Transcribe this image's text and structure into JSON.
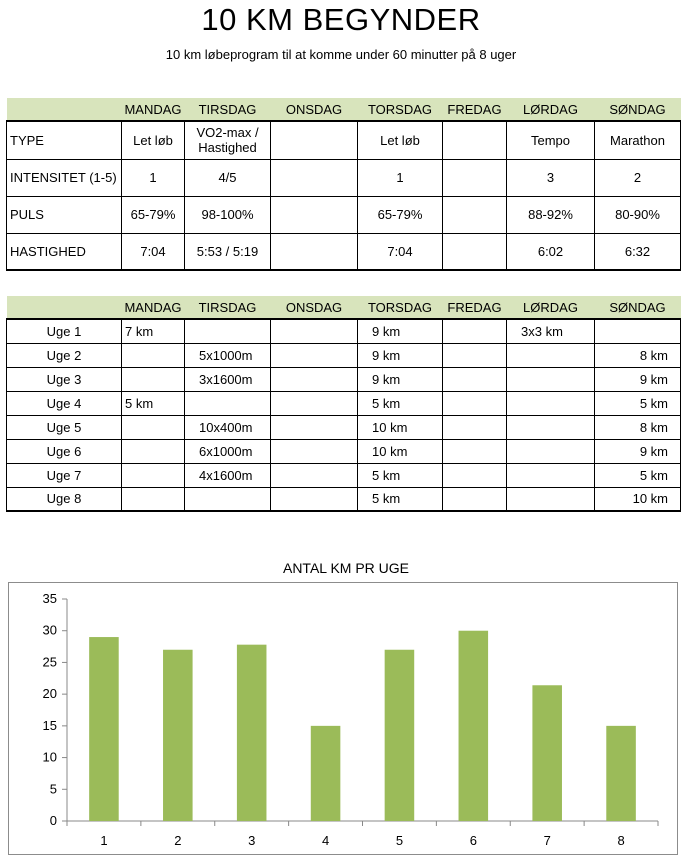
{
  "header": {
    "title": "10 KM BEGYNDER",
    "subtitle": "10 km løbeprogram til at komme under 60 minutter på 8 uger"
  },
  "days": [
    "MANDAG",
    "TIRSDAG",
    "ONSDAG",
    "TORSDAG",
    "FREDAG",
    "LØRDAG",
    "SØNDAG"
  ],
  "intensity_table": {
    "rows": [
      {
        "label": "TYPE",
        "cells": [
          "Let løb",
          "VO2-max / Hastighed",
          "",
          "Let løb",
          "",
          "Tempo",
          "Marathon"
        ]
      },
      {
        "label": "INTENSITET (1-5)",
        "cells": [
          "1",
          "4/5",
          "",
          "1",
          "",
          "3",
          "2"
        ]
      },
      {
        "label": "PULS",
        "cells": [
          "65-79%",
          "98-100%",
          "",
          "65-79%",
          "",
          "88-92%",
          "80-90%"
        ]
      },
      {
        "label": "HASTIGHED",
        "cells": [
          "7:04",
          "5:53 / 5:19",
          "",
          "7:04",
          "",
          "6:02",
          "6:32"
        ]
      }
    ]
  },
  "weekly_table": {
    "rows": [
      {
        "label": "Uge 1",
        "cells": [
          "7 km",
          "",
          "",
          "9 km",
          "",
          "3x3 km",
          ""
        ]
      },
      {
        "label": "Uge 2",
        "cells": [
          "",
          "5x1000m",
          "",
          "9 km",
          "",
          "",
          "8 km"
        ]
      },
      {
        "label": "Uge 3",
        "cells": [
          "",
          "3x1600m",
          "",
          "9 km",
          "",
          "",
          "9 km"
        ]
      },
      {
        "label": "Uge 4",
        "cells": [
          "5 km",
          "",
          "",
          "5 km",
          "",
          "",
          "5 km"
        ]
      },
      {
        "label": "Uge 5",
        "cells": [
          "",
          "10x400m",
          "",
          "10 km",
          "",
          "",
          "8 km"
        ]
      },
      {
        "label": "Uge 6",
        "cells": [
          "",
          "6x1000m",
          "",
          "10 km",
          "",
          "",
          "9 km"
        ]
      },
      {
        "label": "Uge 7",
        "cells": [
          "",
          "4x1600m",
          "",
          "5 km",
          "",
          "",
          "5 km"
        ]
      },
      {
        "label": "Uge 8",
        "cells": [
          "",
          "",
          "",
          "5 km",
          "",
          "",
          "10 km"
        ]
      }
    ]
  },
  "chart_data": {
    "type": "bar",
    "title": "ANTAL KM PR UGE",
    "categories": [
      "1",
      "2",
      "3",
      "4",
      "5",
      "6",
      "7",
      "8"
    ],
    "values": [
      29,
      27,
      27.8,
      15,
      27,
      30,
      21.4,
      15
    ],
    "ylim": [
      0,
      35
    ],
    "yticks": [
      0,
      5,
      10,
      15,
      20,
      25,
      30,
      35
    ],
    "grid": false,
    "bar_color": "#9bbb59",
    "xlabel": "",
    "ylabel": ""
  },
  "colors": {
    "header_band": "#d8e4bc",
    "bar": "#9bbb59",
    "chart_border": "#8c8c8c"
  }
}
